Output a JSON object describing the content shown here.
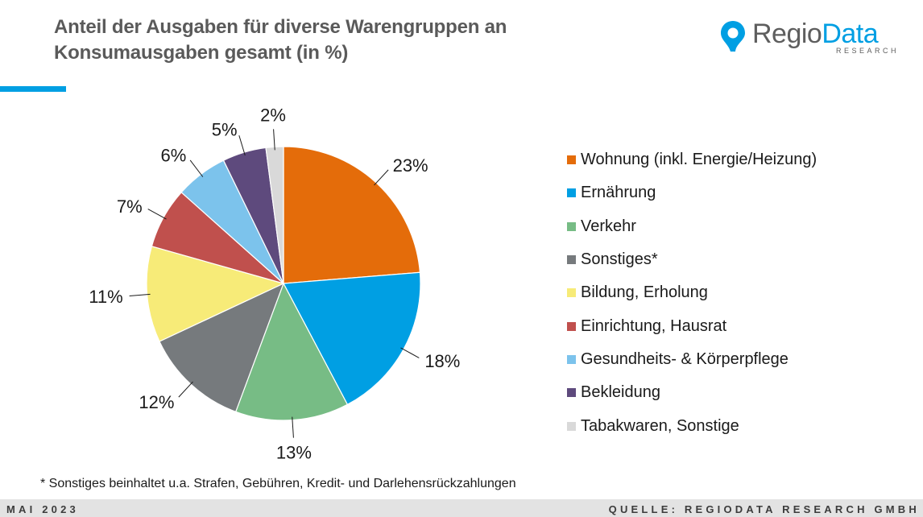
{
  "header": {
    "title_line1": "Anteil der Ausgaben für diverse Warengruppen an",
    "title_line2": "Konsumausgaben gesamt (in %)"
  },
  "logo": {
    "text_a": "Regio",
    "text_b": "Data",
    "subtitle": "RESEARCH",
    "icon": "map-pin-icon"
  },
  "colors": {
    "accent": "#009fe3",
    "title": "#5a5a5a",
    "footer_bg": "#e3e3e3"
  },
  "chart_data": {
    "type": "pie",
    "title": "Anteil der Ausgaben für diverse Warengruppen an Konsumausgaben gesamt (in %)",
    "start_angle_deg": 0,
    "direction": "clockwise",
    "legend_placement": "right",
    "slices": [
      {
        "label": "Wohnung (inkl. Energie/Heizung)",
        "value": 23,
        "display": "23%",
        "color": "#e46c0a"
      },
      {
        "label": "Ernährung",
        "value": 18,
        "display": "18%",
        "color": "#009fe3"
      },
      {
        "label": "Verkehr",
        "value": 13,
        "display": "13%",
        "color": "#77bc85"
      },
      {
        "label": "Sonstiges*",
        "value": 12,
        "display": "12%",
        "color": "#767a7d"
      },
      {
        "label": "Bildung, Erholung",
        "value": 11,
        "display": "11%",
        "color": "#f7eb78"
      },
      {
        "label": "Einrichtung, Hausrat",
        "value": 7,
        "display": "7%",
        "color": "#c0504d"
      },
      {
        "label": "Gesundheits- & Körperpflege",
        "value": 6,
        "display": "6%",
        "color": "#7cc3ec"
      },
      {
        "label": "Bekleidung",
        "value": 5,
        "display": "5%",
        "color": "#5e4a7d"
      },
      {
        "label": "Tabakwaren, Sonstige",
        "value": 2,
        "display": "2%",
        "color": "#d9d9d9"
      }
    ]
  },
  "footnote": "* Sonstiges beinhaltet u.a. Strafen, Gebühren, Kredit- und Darlehensrückzahlungen",
  "footer": {
    "left": "MAI 2023",
    "right": "QUELLE: REGIODATA RESEARCH GMBH"
  }
}
